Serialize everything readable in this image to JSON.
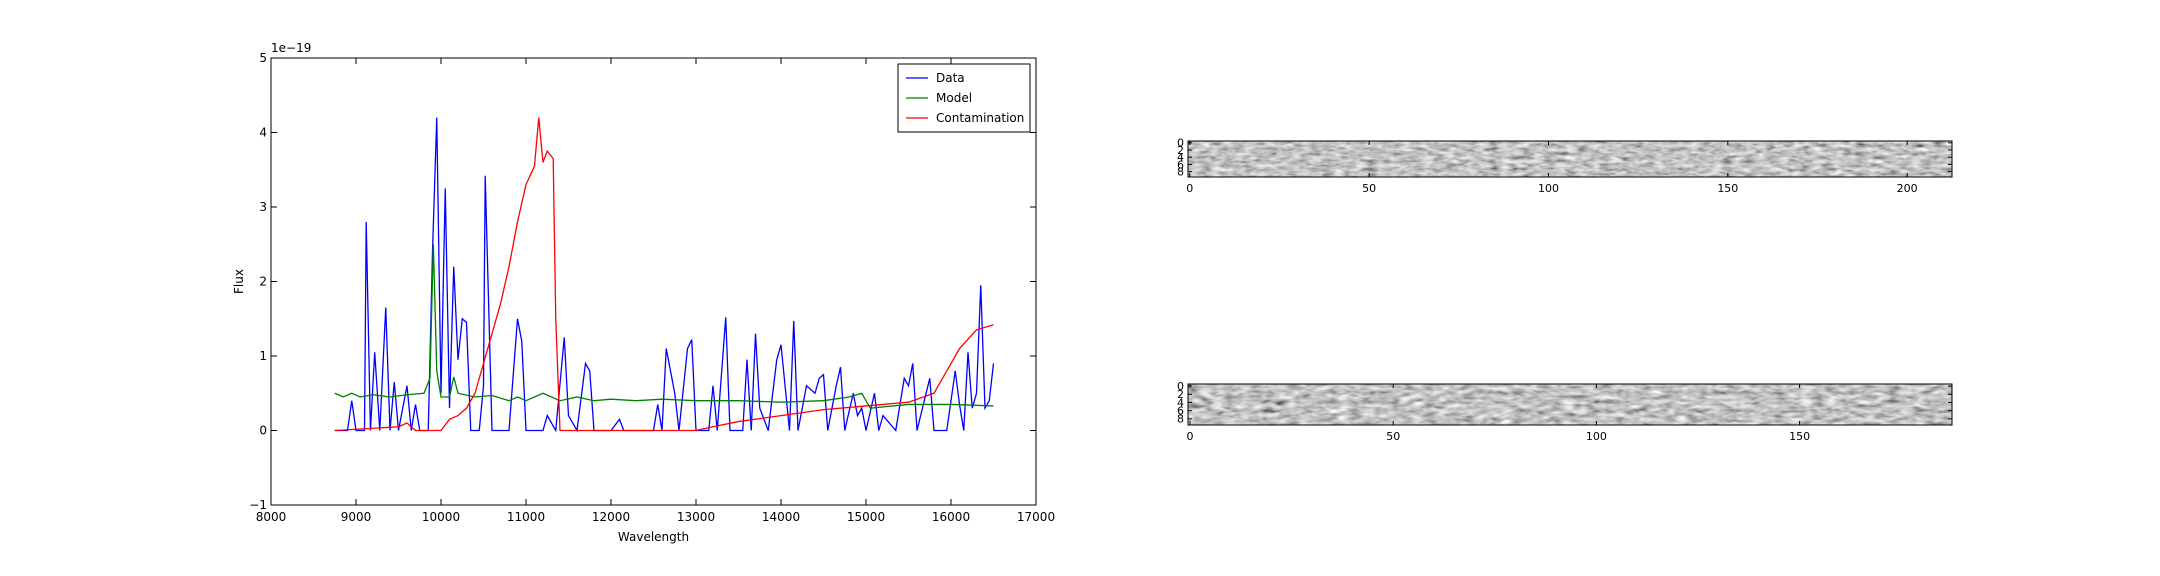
{
  "chart_data": [
    {
      "type": "line",
      "offset_text": "1e−19",
      "xlabel": "Wavelength",
      "ylabel": "Flux",
      "xlim": [
        8000,
        17000
      ],
      "xticks": [
        8000,
        9000,
        10000,
        11000,
        12000,
        13000,
        14000,
        15000,
        16000,
        17000
      ],
      "ylim": [
        -1,
        5
      ],
      "yticks": [
        {
          "value": -1,
          "label": "−1"
        },
        0,
        1,
        2,
        3,
        4,
        5
      ],
      "legend": "upper right",
      "series": [
        {
          "name": "Data",
          "color": "#0000ff",
          "x": [
            8750,
            8900,
            8950,
            9000,
            9100,
            9120,
            9170,
            9220,
            9280,
            9350,
            9400,
            9450,
            9500,
            9600,
            9650,
            9700,
            9750,
            9850,
            9900,
            9950,
            10000,
            10050,
            10100,
            10150,
            10200,
            10250,
            10300,
            10350,
            10450,
            10500,
            10520,
            10600,
            10800,
            10900,
            10950,
            11000,
            11200,
            11250,
            11350,
            11450,
            11500,
            11600,
            11700,
            11750,
            11800,
            12000,
            12100,
            12150,
            12500,
            12550,
            12600,
            12650,
            12750,
            12800,
            12900,
            12950,
            13000,
            13150,
            13200,
            13250,
            13350,
            13400,
            13550,
            13600,
            13650,
            13700,
            13750,
            13850,
            13950,
            14000,
            14100,
            14150,
            14200,
            14300,
            14400,
            14450,
            14500,
            14550,
            14650,
            14700,
            14750,
            14850,
            14900,
            14950,
            15000,
            15100,
            15150,
            15200,
            15350,
            15450,
            15500,
            15550,
            15600,
            15750,
            15800,
            15950,
            16050,
            16100,
            16150,
            16200,
            16250,
            16300,
            16350,
            16400,
            16450,
            16500
          ],
          "values": [
            0,
            0,
            0.4,
            0,
            0,
            2.8,
            0,
            1.05,
            0,
            1.65,
            0,
            0.65,
            0,
            0.6,
            0,
            0.35,
            0,
            0,
            2.4,
            4.2,
            0.5,
            3.25,
            0.3,
            2.2,
            0.95,
            1.5,
            1.45,
            0,
            0,
            0.6,
            3.42,
            0,
            0,
            1.5,
            1.2,
            0,
            0,
            0.2,
            0,
            1.25,
            0.2,
            0,
            0.9,
            0.8,
            0,
            0,
            0.15,
            0,
            0,
            0.35,
            0,
            1.1,
            0.5,
            0,
            1.1,
            1.22,
            0,
            0,
            0.6,
            0,
            1.52,
            0,
            0,
            0.95,
            0,
            1.3,
            0.3,
            0,
            0.95,
            1.15,
            0,
            1.47,
            0,
            0.6,
            0.5,
            0.7,
            0.75,
            0,
            0.6,
            0.85,
            0,
            0.5,
            0.2,
            0.3,
            0,
            0.5,
            0,
            0.2,
            0,
            0.7,
            0.6,
            0.9,
            0,
            0.7,
            0,
            0,
            0.8,
            0.35,
            0,
            1.05,
            0.3,
            0.5,
            1.95,
            0.3,
            0.4,
            0.9
          ]
        },
        {
          "name": "Model",
          "color": "#008000",
          "x": [
            8750,
            8850,
            8950,
            9050,
            9200,
            9400,
            9600,
            9800,
            9870,
            9910,
            9950,
            10000,
            10100,
            10150,
            10200,
            10400,
            10600,
            10800,
            10900,
            11000,
            11200,
            11400,
            11600,
            11800,
            12000,
            12300,
            12600,
            13000,
            13500,
            14000,
            14500,
            14800,
            14950,
            15050,
            15500,
            16000,
            16500
          ],
          "values": [
            0.5,
            0.45,
            0.5,
            0.45,
            0.48,
            0.45,
            0.48,
            0.5,
            0.7,
            2.5,
            0.8,
            0.45,
            0.45,
            0.72,
            0.5,
            0.45,
            0.47,
            0.4,
            0.45,
            0.4,
            0.5,
            0.4,
            0.45,
            0.4,
            0.42,
            0.4,
            0.42,
            0.4,
            0.4,
            0.38,
            0.4,
            0.45,
            0.5,
            0.3,
            0.35,
            0.35,
            0.33
          ]
        },
        {
          "name": "Contamination",
          "color": "#ff0000",
          "x": [
            8750,
            9500,
            9600,
            9700,
            10000,
            10100,
            10200,
            10300,
            10400,
            10500,
            10600,
            10700,
            10800,
            10900,
            11000,
            11100,
            11150,
            11200,
            11250,
            11320,
            11350,
            11400,
            13000,
            13200,
            13500,
            14000,
            14500,
            15000,
            15500,
            15800,
            15950,
            16100,
            16300,
            16500
          ],
          "values": [
            0,
            0.05,
            0.1,
            0,
            0,
            0.15,
            0.2,
            0.3,
            0.5,
            0.9,
            1.3,
            1.7,
            2.2,
            2.8,
            3.3,
            3.55,
            4.2,
            3.6,
            3.75,
            3.65,
            1.5,
            0,
            0,
            0.05,
            0.12,
            0.2,
            0.28,
            0.33,
            0.38,
            0.5,
            0.8,
            1.1,
            1.35,
            1.42
          ]
        }
      ]
    },
    {
      "type": "image",
      "xlim": [
        -0.5,
        212.5
      ],
      "xticks": [
        0,
        50,
        100,
        150,
        200
      ],
      "ylim": [
        9.5,
        -0.5
      ],
      "yticks": [
        0,
        2,
        4,
        6,
        8
      ]
    },
    {
      "type": "image",
      "xlim": [
        -0.5,
        187.5
      ],
      "xticks": [
        0,
        50,
        100,
        150
      ],
      "ylim": [
        9.5,
        -0.5
      ],
      "yticks": [
        0,
        2,
        4,
        6,
        8
      ]
    }
  ]
}
